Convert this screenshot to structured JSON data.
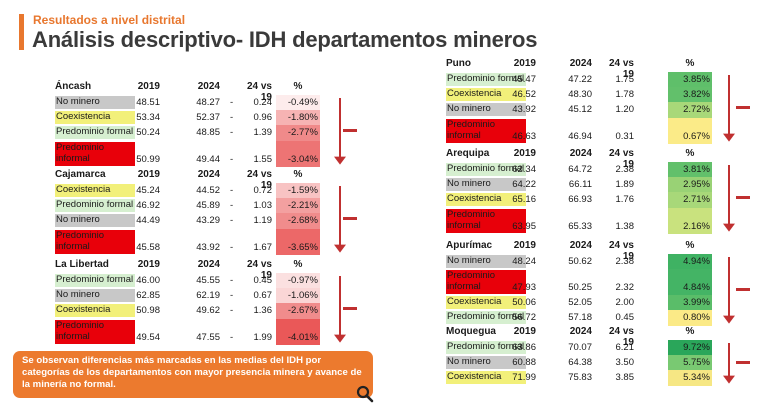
{
  "header": {
    "subtitle": "Resultados a nivel distrital",
    "title": "Análisis descriptivo- IDH departamentos mineros"
  },
  "colors": {
    "accent": "#e8772e",
    "predominio_formal": "#d6efd0",
    "no_minero": "#c8c8c8",
    "coexistencia": "#f2f07a",
    "predominio_informal": "#e8000a"
  },
  "columns": [
    "2019",
    "2024",
    "24 vs 19",
    "%"
  ],
  "left_tables": [
    {
      "name": "Áncash",
      "rows": [
        {
          "cat": "No minero",
          "type": "no_minero",
          "v2019": "48.51",
          "v2024": "48.27",
          "dash": "-",
          "diff": "0.24",
          "pct": "-0.49%",
          "pct_color": "#fdecec"
        },
        {
          "cat": "Coexistencia",
          "type": "coexistencia",
          "v2019": "53.34",
          "v2024": "52.37",
          "dash": "-",
          "diff": "0.96",
          "pct": "-1.80%",
          "pct_color": "#f6b3b3"
        },
        {
          "cat": "Predominio formal",
          "type": "predominio_formal",
          "v2019": "50.24",
          "v2024": "48.85",
          "dash": "-",
          "diff": "1.39",
          "pct": "-2.77%",
          "pct_color": "#f08a8a"
        },
        {
          "cat": "Predominio informal",
          "type": "predominio_informal",
          "v2019": "50.99",
          "v2024": "49.44",
          "dash": "-",
          "diff": "1.55",
          "pct": "-3.04%",
          "pct_color": "#ed7474",
          "tall": true
        }
      ]
    },
    {
      "name": "Cajamarca",
      "rows": [
        {
          "cat": "Coexistencia",
          "type": "coexistencia",
          "v2019": "45.24",
          "v2024": "44.52",
          "dash": "-",
          "diff": "0.72",
          "pct": "-1.59%",
          "pct_color": "#f8c3c3"
        },
        {
          "cat": "Predominio formal",
          "type": "predominio_formal",
          "v2019": "46.92",
          "v2024": "45.89",
          "dash": "-",
          "diff": "1.03",
          "pct": "-2.21%",
          "pct_color": "#f3a0a0"
        },
        {
          "cat": "No minero",
          "type": "no_minero",
          "v2019": "44.49",
          "v2024": "43.29",
          "dash": "-",
          "diff": "1.19",
          "pct": "-2.68%",
          "pct_color": "#f08c8c"
        },
        {
          "cat": "Predominio informal",
          "type": "predominio_informal",
          "v2019": "45.58",
          "v2024": "43.92",
          "dash": "-",
          "diff": "1.67",
          "pct": "-3.65%",
          "pct_color": "#ec6868",
          "tall": true
        }
      ]
    },
    {
      "name": "La Libertad",
      "rows": [
        {
          "cat": "Predominio formal",
          "type": "predominio_formal",
          "v2019": "46.00",
          "v2024": "45.55",
          "dash": "-",
          "diff": "0.45",
          "pct": "-0.97%",
          "pct_color": "#fbe0e0"
        },
        {
          "cat": "No minero",
          "type": "no_minero",
          "v2019": "62.85",
          "v2024": "62.19",
          "dash": "-",
          "diff": "0.67",
          "pct": "-1.06%",
          "pct_color": "#fad6d6"
        },
        {
          "cat": "Coexistencia",
          "type": "coexistencia",
          "v2019": "50.98",
          "v2024": "49.62",
          "dash": "-",
          "diff": "1.36",
          "pct": "-2.67%",
          "pct_color": "#f08c8c"
        },
        {
          "cat": "Predominio informal",
          "type": "predominio_informal",
          "v2019": "49.54",
          "v2024": "47.55",
          "dash": "-",
          "diff": "1.99",
          "pct": "-4.01%",
          "pct_color": "#ea5858",
          "tall": true
        }
      ]
    }
  ],
  "right_tables": [
    {
      "name": "Puno",
      "rows": [
        {
          "cat": "Predominio formal",
          "type": "predominio_formal",
          "v2019": "45.47",
          "v2024": "47.22",
          "dash": "",
          "diff": "1.75",
          "pct": "3.85%",
          "pct_color": "#5fbf6a"
        },
        {
          "cat": "Coexistencia",
          "type": "coexistencia",
          "v2019": "46.52",
          "v2024": "48.30",
          "dash": "",
          "diff": "1.78",
          "pct": "3.82%",
          "pct_color": "#62c06b"
        },
        {
          "cat": "No minero",
          "type": "no_minero",
          "v2019": "43.92",
          "v2024": "45.12",
          "dash": "",
          "diff": "1.20",
          "pct": "2.72%",
          "pct_color": "#a8d879"
        },
        {
          "cat": "Predominio informal",
          "type": "predominio_informal",
          "v2019": "46.63",
          "v2024": "46.94",
          "dash": "",
          "diff": "0.31",
          "pct": "0.67%",
          "pct_color": "#fbeb88",
          "tall": true
        }
      ]
    },
    {
      "name": "Arequipa",
      "rows": [
        {
          "cat": "Predominio formal",
          "type": "predominio_formal",
          "v2019": "62.34",
          "v2024": "64.72",
          "dash": "",
          "diff": "2.38",
          "pct": "3.81%",
          "pct_color": "#62c06b"
        },
        {
          "cat": "No minero",
          "type": "no_minero",
          "v2019": "64.22",
          "v2024": "66.11",
          "dash": "",
          "diff": "1.89",
          "pct": "2.95%",
          "pct_color": "#99d275"
        },
        {
          "cat": "Coexistencia",
          "type": "coexistencia",
          "v2019": "65.16",
          "v2024": "66.93",
          "dash": "",
          "diff": "1.76",
          "pct": "2.71%",
          "pct_color": "#a8d879"
        },
        {
          "cat": "Predominio informal",
          "type": "predominio_informal",
          "v2019": "63.95",
          "v2024": "65.33",
          "dash": "",
          "diff": "1.38",
          "pct": "2.16%",
          "pct_color": "#c9e27e",
          "tall": true
        }
      ]
    },
    {
      "name": "Apurímac",
      "rows": [
        {
          "cat": "No minero",
          "type": "no_minero",
          "v2019": "48.24",
          "v2024": "50.62",
          "dash": "",
          "diff": "2.38",
          "pct": "4.94%",
          "pct_color": "#3fb263"
        },
        {
          "cat": "Predominio informal",
          "type": "predominio_informal",
          "v2019": "47.93",
          "v2024": "50.25",
          "dash": "",
          "diff": "2.32",
          "pct": "4.84%",
          "pct_color": "#44b465",
          "tall": true
        },
        {
          "cat": "Coexistencia",
          "type": "coexistencia",
          "v2019": "50.06",
          "v2024": "52.05",
          "dash": "",
          "diff": "2.00",
          "pct": "3.99%",
          "pct_color": "#5abd69"
        },
        {
          "cat": "Predominio formal",
          "type": "predominio_formal",
          "v2019": "56.72",
          "v2024": "57.18",
          "dash": "",
          "diff": "0.45",
          "pct": "0.80%",
          "pct_color": "#fbea87"
        }
      ]
    },
    {
      "name": "Moquegua",
      "rows": [
        {
          "cat": "Predominio formal",
          "type": "predominio_formal",
          "v2019": "63.86",
          "v2024": "70.07",
          "dash": "",
          "diff": "6.21",
          "pct": "9.72%",
          "pct_color": "#2aa65a"
        },
        {
          "cat": "No minero",
          "type": "no_minero",
          "v2019": "60.88",
          "v2024": "64.38",
          "dash": "",
          "diff": "3.50",
          "pct": "5.75%",
          "pct_color": "#79c972"
        },
        {
          "cat": "Coexistencia",
          "type": "coexistencia",
          "v2019": "71.99",
          "v2024": "75.83",
          "dash": "",
          "diff": "3.85",
          "pct": "5.34%",
          "pct_color": "#f6e784"
        }
      ]
    }
  ],
  "note": "Se observan diferencias más marcadas en las medias del IDH por categorías de los departamentos con mayor presencia minera y avance de la minería no formal."
}
